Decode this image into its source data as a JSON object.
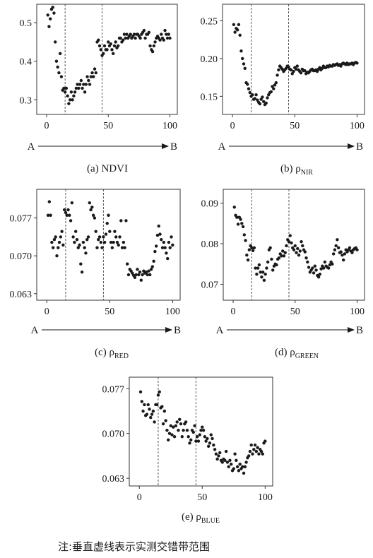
{
  "note": "注:垂直虚线表示实测交错带范围",
  "arrow_start": "A",
  "arrow_end": "B",
  "chart_data": [
    {
      "type": "scatter",
      "caption_prefix": "(a) NDVI",
      "caption_sub": "",
      "x_ticks": [
        "0",
        "50",
        "100"
      ],
      "y_ticks": [
        "0.3",
        "0.4",
        "0.5"
      ],
      "xlim": [
        -8,
        106
      ],
      "ylim": [
        0.262,
        0.548
      ],
      "x_tick_values": [
        0,
        50,
        100
      ],
      "y_tick_values": [
        0.3,
        0.4,
        0.5
      ],
      "vlines": [
        15,
        45
      ],
      "arrow": true,
      "x": [
        1,
        2,
        3,
        4,
        5,
        6,
        7,
        8,
        9,
        10,
        11,
        12,
        13,
        14,
        15,
        16,
        17,
        18,
        19,
        20,
        21,
        22,
        23,
        24,
        25,
        26,
        27,
        28,
        29,
        30,
        31,
        32,
        33,
        34,
        35,
        36,
        37,
        38,
        39,
        40,
        41,
        42,
        43,
        44,
        45,
        46,
        47,
        48,
        49,
        50,
        51,
        52,
        53,
        54,
        55,
        56,
        57,
        58,
        59,
        60,
        61,
        62,
        63,
        64,
        65,
        66,
        67,
        68,
        69,
        70,
        71,
        72,
        73,
        74,
        75,
        76,
        77,
        78,
        79,
        80,
        81,
        82,
        83,
        84,
        85,
        86,
        87,
        88,
        89,
        90,
        91,
        92,
        93,
        94,
        95,
        96,
        97,
        98,
        99,
        100
      ],
      "y": [
        0.52,
        0.49,
        0.51,
        0.535,
        0.54,
        0.525,
        0.45,
        0.4,
        0.385,
        0.37,
        0.42,
        0.36,
        0.325,
        0.33,
        0.32,
        0.33,
        0.31,
        0.29,
        0.3,
        0.32,
        0.3,
        0.31,
        0.32,
        0.33,
        0.34,
        0.33,
        0.34,
        0.35,
        0.33,
        0.34,
        0.32,
        0.34,
        0.36,
        0.35,
        0.34,
        0.36,
        0.37,
        0.36,
        0.38,
        0.37,
        0.45,
        0.455,
        0.44,
        0.43,
        0.415,
        0.42,
        0.44,
        0.43,
        0.43,
        0.45,
        0.44,
        0.445,
        0.43,
        0.42,
        0.44,
        0.45,
        0.435,
        0.44,
        0.46,
        0.46,
        0.45,
        0.455,
        0.47,
        0.46,
        0.47,
        0.46,
        0.465,
        0.47,
        0.46,
        0.465,
        0.47,
        0.46,
        0.47,
        0.47,
        0.465,
        0.46,
        0.47,
        0.475,
        0.48,
        0.46,
        0.47,
        0.47,
        0.475,
        0.44,
        0.43,
        0.425,
        0.44,
        0.45,
        0.46,
        0.465,
        0.46,
        0.455,
        0.47,
        0.46,
        0.455,
        0.48,
        0.47,
        0.46,
        0.47,
        0.46
      ]
    },
    {
      "type": "scatter",
      "caption_prefix": "(b) ρ",
      "caption_sub": "NIR",
      "x_ticks": [
        "0",
        "50",
        "100"
      ],
      "y_ticks": [
        "0.15",
        "0.20",
        "0.25"
      ],
      "xlim": [
        -8,
        106
      ],
      "ylim": [
        0.126,
        0.272
      ],
      "x_tick_values": [
        0,
        50,
        100
      ],
      "y_tick_values": [
        0.15,
        0.2,
        0.25
      ],
      "vlines": [
        15,
        45
      ],
      "arrow": true,
      "x": [
        1,
        2,
        3,
        4,
        5,
        6,
        7,
        8,
        9,
        10,
        11,
        12,
        13,
        14,
        15,
        16,
        17,
        18,
        19,
        20,
        21,
        22,
        23,
        24,
        25,
        26,
        27,
        28,
        29,
        30,
        31,
        32,
        33,
        34,
        35,
        36,
        37,
        38,
        39,
        40,
        41,
        42,
        43,
        44,
        45,
        46,
        47,
        48,
        49,
        50,
        51,
        52,
        53,
        54,
        55,
        56,
        57,
        58,
        59,
        60,
        61,
        62,
        63,
        64,
        65,
        66,
        67,
        68,
        69,
        70,
        71,
        72,
        73,
        74,
        75,
        76,
        77,
        78,
        79,
        80,
        81,
        82,
        83,
        84,
        85,
        86,
        87,
        88,
        89,
        90,
        91,
        92,
        93,
        94,
        95,
        96,
        97,
        98,
        99,
        100
      ],
      "y": [
        0.245,
        0.235,
        0.24,
        0.238,
        0.245,
        0.231,
        0.21,
        0.2,
        0.193,
        0.187,
        0.168,
        0.166,
        0.16,
        0.155,
        0.15,
        0.152,
        0.146,
        0.147,
        0.152,
        0.145,
        0.142,
        0.14,
        0.146,
        0.149,
        0.143,
        0.139,
        0.141,
        0.148,
        0.152,
        0.155,
        0.156,
        0.163,
        0.16,
        0.165,
        0.168,
        0.178,
        0.185,
        0.19,
        0.188,
        0.186,
        0.183,
        0.185,
        0.187,
        0.19,
        0.189,
        0.186,
        0.185,
        0.18,
        0.183,
        0.188,
        0.186,
        0.19,
        0.185,
        0.183,
        0.181,
        0.186,
        0.184,
        0.184,
        0.18,
        0.182,
        0.181,
        0.183,
        0.185,
        0.186,
        0.184,
        0.184,
        0.185,
        0.183,
        0.186,
        0.188,
        0.185,
        0.187,
        0.19,
        0.188,
        0.188,
        0.19,
        0.189,
        0.191,
        0.19,
        0.19,
        0.192,
        0.191,
        0.192,
        0.193,
        0.191,
        0.192,
        0.19,
        0.193,
        0.194,
        0.193,
        0.192,
        0.194,
        0.192,
        0.193,
        0.193,
        0.194,
        0.192,
        0.194,
        0.195,
        0.194
      ]
    },
    {
      "type": "scatter",
      "caption_prefix": "(c) ρ",
      "caption_sub": "RED",
      "x_ticks": [
        "0",
        "50",
        "100"
      ],
      "y_ticks": [
        "0.063",
        "0.070",
        "0.077"
      ],
      "xlim": [
        -8,
        106
      ],
      "ylim": [
        0.0618,
        0.0823
      ],
      "x_tick_values": [
        0,
        50,
        100
      ],
      "y_tick_values": [
        0.063,
        0.07,
        0.077
      ],
      "vlines": [
        15,
        45
      ],
      "arrow": true,
      "x": [
        1,
        2,
        3,
        4,
        5,
        6,
        7,
        8,
        9,
        10,
        11,
        12,
        13,
        14,
        15,
        16,
        17,
        18,
        19,
        20,
        21,
        22,
        23,
        24,
        25,
        26,
        27,
        28,
        29,
        30,
        31,
        32,
        33,
        34,
        35,
        36,
        37,
        38,
        39,
        40,
        41,
        42,
        43,
        44,
        45,
        46,
        47,
        48,
        49,
        50,
        51,
        52,
        53,
        54,
        55,
        56,
        57,
        58,
        59,
        60,
        61,
        62,
        63,
        64,
        65,
        66,
        67,
        68,
        69,
        70,
        71,
        72,
        73,
        74,
        75,
        76,
        77,
        78,
        79,
        80,
        81,
        82,
        83,
        84,
        85,
        86,
        87,
        88,
        89,
        90,
        91,
        92,
        93,
        94,
        95,
        96,
        97,
        98,
        99,
        100
      ],
      "y": [
        0.0775,
        0.08,
        0.0775,
        0.0725,
        0.0715,
        0.073,
        0.0735,
        0.07,
        0.0715,
        0.0725,
        0.0735,
        0.0745,
        0.072,
        0.0785,
        0.078,
        0.0775,
        0.0785,
        0.0775,
        0.0765,
        0.0798,
        0.0735,
        0.0725,
        0.0745,
        0.073,
        0.0715,
        0.072,
        0.0685,
        0.067,
        0.0725,
        0.0715,
        0.0705,
        0.073,
        0.0735,
        0.0798,
        0.0785,
        0.079,
        0.0775,
        0.077,
        0.0745,
        0.0715,
        0.073,
        0.0735,
        0.0725,
        0.0715,
        0.0735,
        0.0725,
        0.074,
        0.076,
        0.0775,
        0.0745,
        0.0725,
        0.0715,
        0.0725,
        0.0745,
        0.0735,
        0.0725,
        0.072,
        0.0735,
        0.0765,
        0.0715,
        0.0725,
        0.0715,
        0.0765,
        0.0685,
        0.0665,
        0.0675,
        0.0672,
        0.0668,
        0.0664,
        0.066,
        0.0665,
        0.0675,
        0.0665,
        0.067,
        0.0655,
        0.0665,
        0.0672,
        0.0668,
        0.067,
        0.0665,
        0.0672,
        0.0665,
        0.0675,
        0.068,
        0.069,
        0.0708,
        0.0718,
        0.0738,
        0.0755,
        0.074,
        0.073,
        0.0715,
        0.0725,
        0.0715,
        0.0705,
        0.0695,
        0.0725,
        0.0715,
        0.0735,
        0.072
      ]
    },
    {
      "type": "scatter",
      "caption_prefix": "(d) ρ",
      "caption_sub": "GREEN",
      "x_ticks": [
        "0",
        "50",
        "100"
      ],
      "y_ticks": [
        "0.07",
        "0.08",
        "0.09"
      ],
      "xlim": [
        -8,
        106
      ],
      "ylim": [
        0.0661,
        0.0934
      ],
      "x_tick_values": [
        0,
        50,
        100
      ],
      "y_tick_values": [
        0.07,
        0.08,
        0.09
      ],
      "vlines": [
        15,
        45
      ],
      "arrow": true,
      "x": [
        1,
        2,
        3,
        4,
        5,
        6,
        7,
        8,
        9,
        10,
        11,
        12,
        13,
        14,
        15,
        16,
        17,
        18,
        19,
        20,
        21,
        22,
        23,
        24,
        25,
        26,
        27,
        28,
        29,
        30,
        31,
        32,
        33,
        34,
        35,
        36,
        37,
        38,
        39,
        40,
        41,
        42,
        43,
        44,
        45,
        46,
        47,
        48,
        49,
        50,
        51,
        52,
        53,
        54,
        55,
        56,
        57,
        58,
        59,
        60,
        61,
        62,
        63,
        64,
        65,
        66,
        67,
        68,
        69,
        70,
        71,
        72,
        73,
        74,
        75,
        76,
        77,
        78,
        79,
        80,
        81,
        82,
        83,
        84,
        85,
        86,
        87,
        88,
        89,
        90,
        91,
        92,
        93,
        94,
        95,
        96,
        97,
        98,
        99,
        100
      ],
      "y": [
        0.089,
        0.087,
        0.0865,
        0.0848,
        0.0865,
        0.086,
        0.085,
        0.0842,
        0.0822,
        0.0808,
        0.0772,
        0.076,
        0.0785,
        0.0795,
        0.079,
        0.0783,
        0.079,
        0.074,
        0.0725,
        0.074,
        0.0748,
        0.073,
        0.0718,
        0.073,
        0.071,
        0.0725,
        0.074,
        0.0755,
        0.0785,
        0.079,
        0.0762,
        0.0735,
        0.0745,
        0.075,
        0.0748,
        0.0762,
        0.0765,
        0.0775,
        0.077,
        0.0782,
        0.077,
        0.0778,
        0.0795,
        0.081,
        0.0805,
        0.082,
        0.0802,
        0.079,
        0.0785,
        0.0795,
        0.0778,
        0.0788,
        0.0772,
        0.0782,
        0.0805,
        0.0795,
        0.0785,
        0.078,
        0.0765,
        0.0755,
        0.0742,
        0.073,
        0.0735,
        0.074,
        0.0728,
        0.0745,
        0.0735,
        0.0722,
        0.0718,
        0.0725,
        0.0738,
        0.0745,
        0.074,
        0.0755,
        0.0745,
        0.0742,
        0.074,
        0.0748,
        0.0755,
        0.075,
        0.0775,
        0.0785,
        0.0795,
        0.081,
        0.079,
        0.0778,
        0.078,
        0.0772,
        0.076,
        0.0775,
        0.0785,
        0.078,
        0.0785,
        0.079,
        0.0782,
        0.0778,
        0.0785,
        0.0788,
        0.079,
        0.0785
      ]
    },
    {
      "type": "scatter",
      "caption_prefix": "(e) ρ",
      "caption_sub": "BLUE",
      "x_ticks": [
        "0",
        "50",
        "100"
      ],
      "y_ticks": [
        "0.063",
        "0.070",
        "0.077"
      ],
      "xlim": [
        -8,
        106
      ],
      "ylim": [
        0.0618,
        0.0788
      ],
      "x_tick_values": [
        0,
        50,
        100
      ],
      "y_tick_values": [
        0.063,
        0.07,
        0.077
      ],
      "vlines": [
        15,
        45
      ],
      "arrow": false,
      "x": [
        1,
        2,
        3,
        4,
        5,
        6,
        7,
        8,
        9,
        10,
        11,
        12,
        13,
        14,
        15,
        16,
        17,
        18,
        19,
        20,
        21,
        22,
        23,
        24,
        25,
        26,
        27,
        28,
        29,
        30,
        31,
        32,
        33,
        34,
        35,
        36,
        37,
        38,
        39,
        40,
        41,
        42,
        43,
        44,
        45,
        46,
        47,
        48,
        49,
        50,
        51,
        52,
        53,
        54,
        55,
        56,
        57,
        58,
        59,
        60,
        61,
        62,
        63,
        64,
        65,
        66,
        67,
        68,
        69,
        70,
        71,
        72,
        73,
        74,
        75,
        76,
        77,
        78,
        79,
        80,
        81,
        82,
        83,
        84,
        85,
        86,
        87,
        88,
        89,
        90,
        91,
        92,
        93,
        94,
        95,
        96,
        97,
        98,
        99,
        100
      ],
      "y": [
        0.0765,
        0.075,
        0.0735,
        0.0745,
        0.0728,
        0.073,
        0.0745,
        0.0738,
        0.0725,
        0.073,
        0.0735,
        0.0718,
        0.0745,
        0.0745,
        0.076,
        0.0765,
        0.074,
        0.0742,
        0.0715,
        0.0735,
        0.072,
        0.0705,
        0.069,
        0.07,
        0.0712,
        0.0698,
        0.071,
        0.0695,
        0.0712,
        0.0718,
        0.0705,
        0.0722,
        0.0715,
        0.0695,
        0.0705,
        0.0715,
        0.0718,
        0.0705,
        0.0695,
        0.0685,
        0.069,
        0.0705,
        0.0702,
        0.0712,
        0.0688,
        0.0695,
        0.0688,
        0.0698,
        0.0705,
        0.071,
        0.0705,
        0.0695,
        0.0688,
        0.0692,
        0.068,
        0.0685,
        0.0698,
        0.0692,
        0.0682,
        0.0675,
        0.0668,
        0.066,
        0.0665,
        0.067,
        0.0658,
        0.0655,
        0.066,
        0.0658,
        0.0672,
        0.0655,
        0.0648,
        0.0658,
        0.0652,
        0.0642,
        0.0645,
        0.0668,
        0.0658,
        0.0648,
        0.0642,
        0.0652,
        0.0645,
        0.0648,
        0.0638,
        0.0648,
        0.0655,
        0.0662,
        0.0665,
        0.0672,
        0.0682,
        0.0668,
        0.0675,
        0.0682,
        0.0672,
        0.0678,
        0.0668,
        0.0675,
        0.0672,
        0.0668,
        0.0685,
        0.0688
      ]
    }
  ]
}
